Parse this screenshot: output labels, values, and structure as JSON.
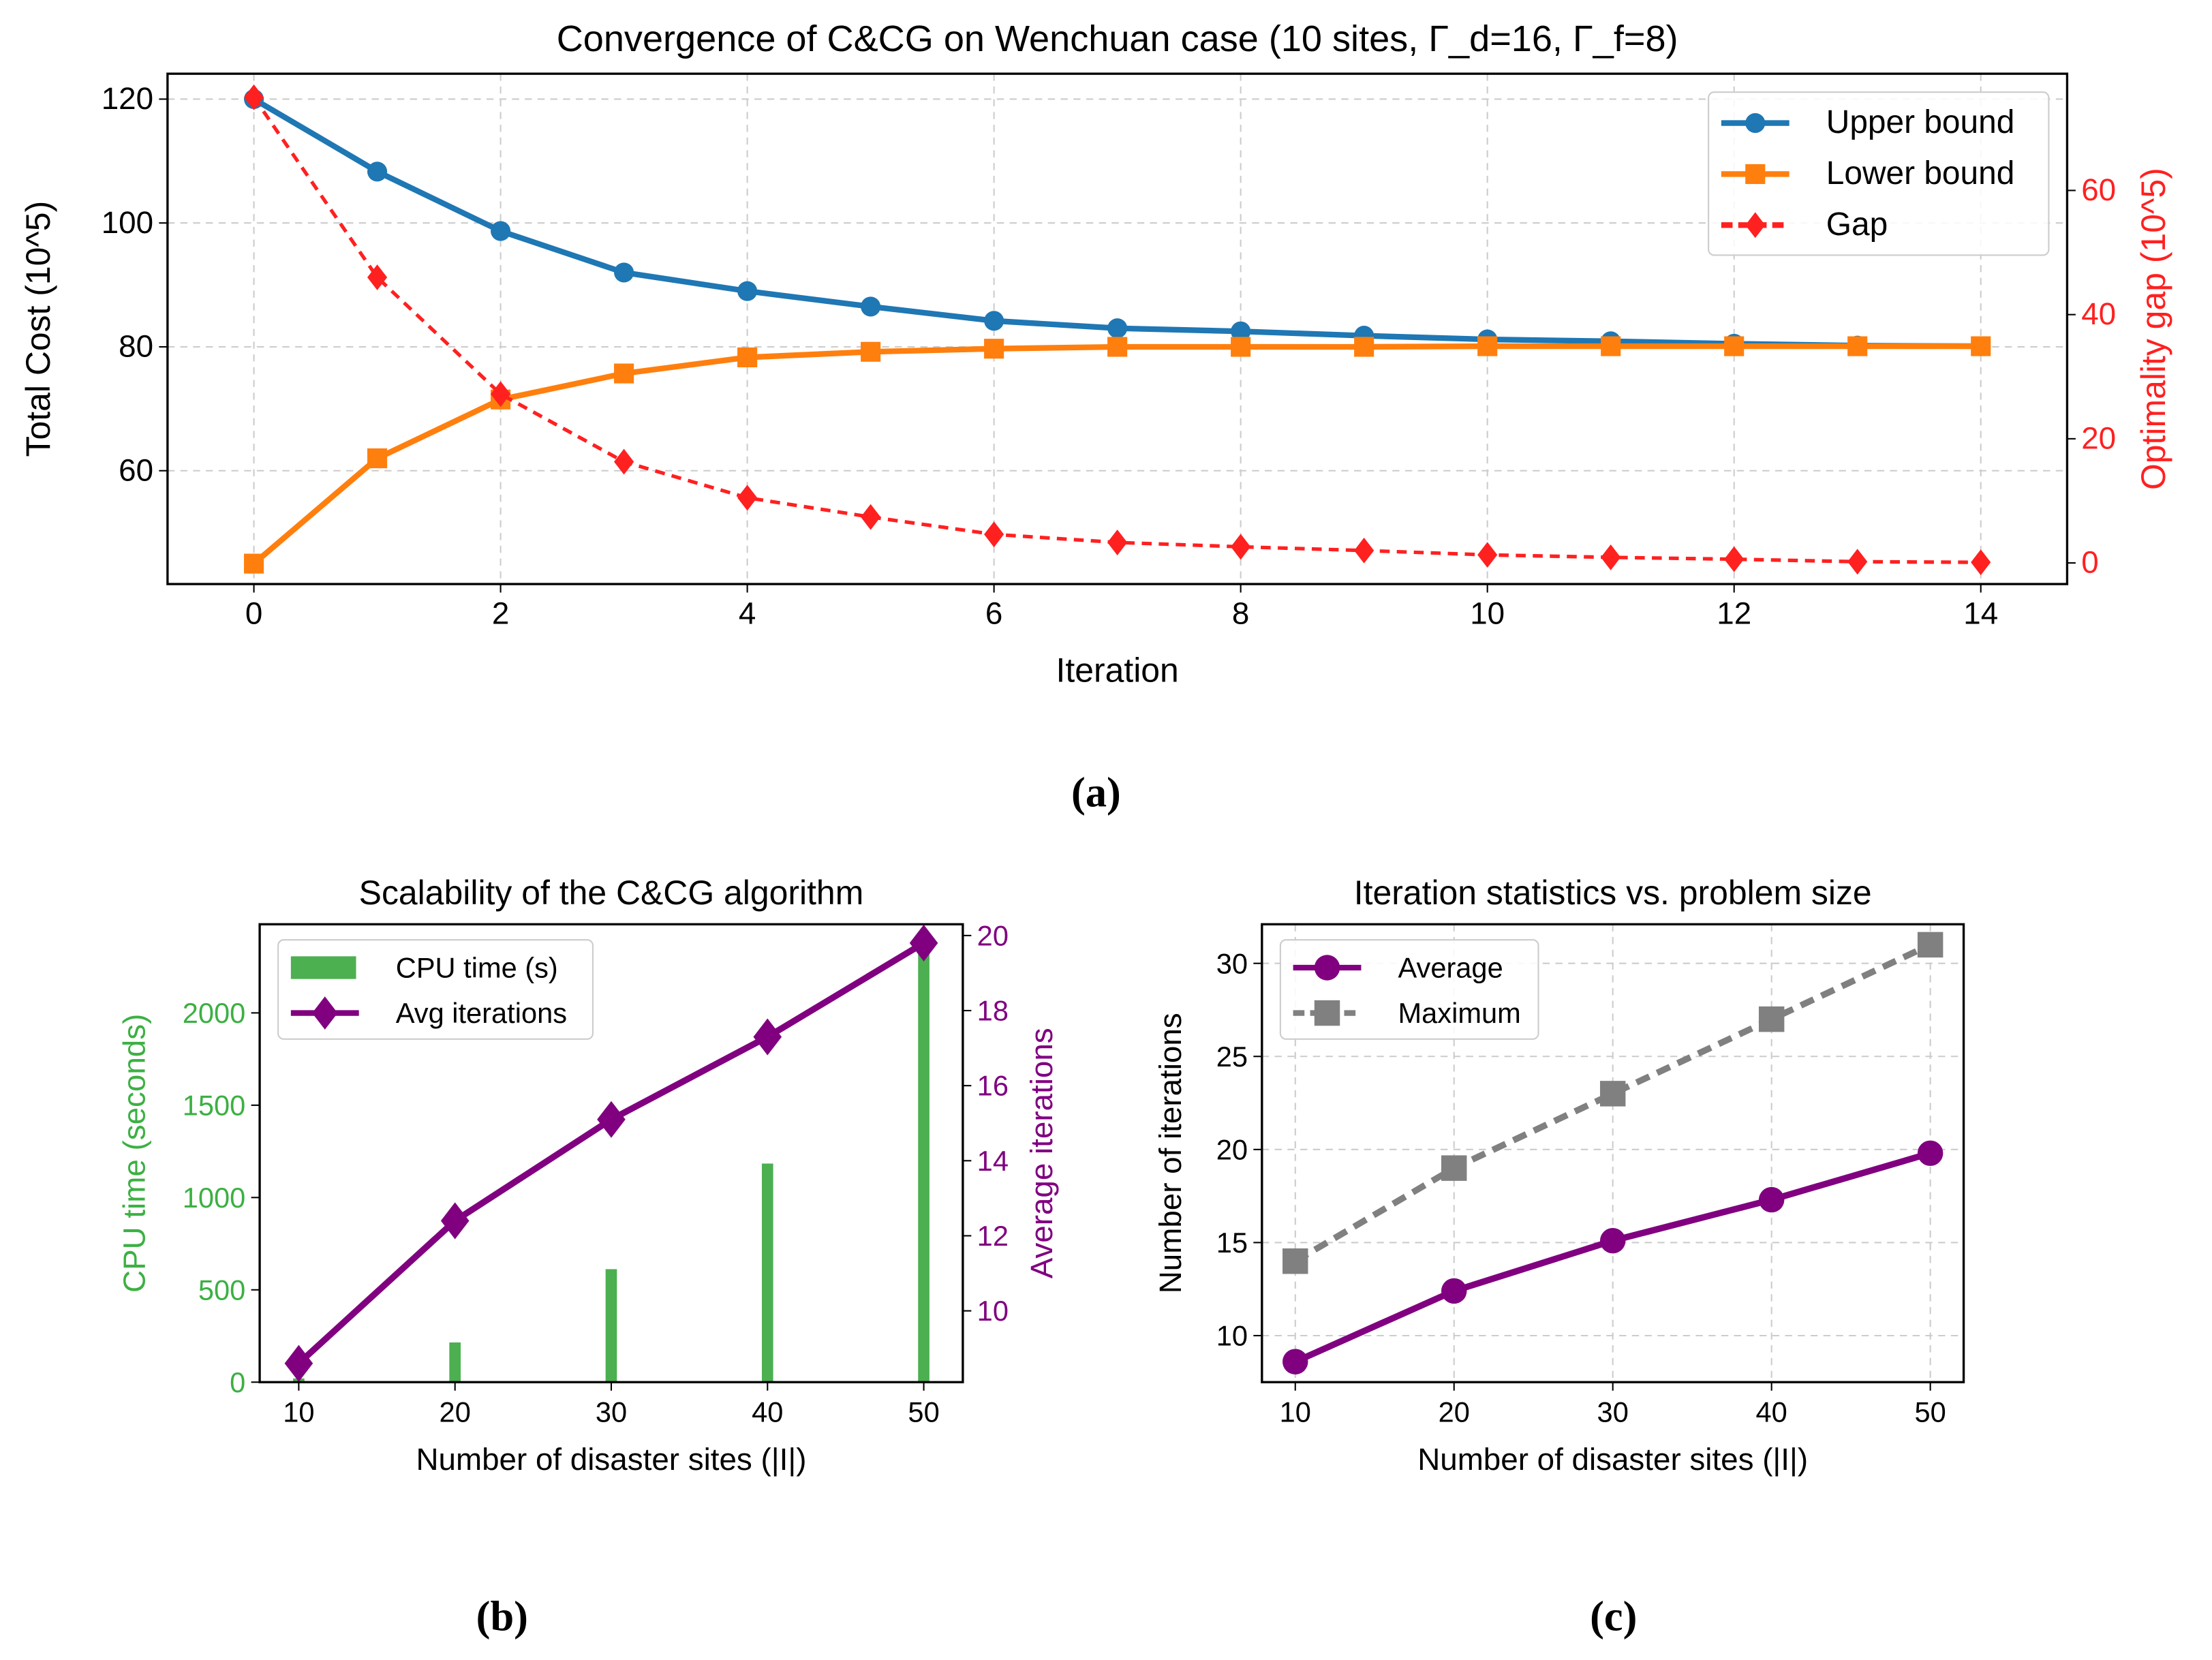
{
  "captions": [
    "(a)",
    "(b)",
    "(c)"
  ],
  "chart_data": [
    {
      "type": "line",
      "title": "Convergence of C&CG on Wenchuan case (10 sites, Γ_d=16, Γ_f=8)",
      "xlabel": "Iteration",
      "ylabel": "Total Cost (10^5)",
      "ylabel_right": "Optimality gap (10^5)",
      "x": [
        0,
        1,
        2,
        3,
        4,
        5,
        6,
        7,
        8,
        9,
        10,
        11,
        12,
        13,
        14
      ],
      "xlim": [
        -0.7,
        14.7
      ],
      "ylim": [
        41.7,
        124.1
      ],
      "ylim_right": [
        -3.4,
        78.8
      ],
      "xticks": [
        0,
        2,
        4,
        6,
        8,
        10,
        12,
        14
      ],
      "yticks": [
        60,
        80,
        100,
        120
      ],
      "yticks_right": [
        0,
        20,
        40,
        60
      ],
      "grid": true,
      "legend_position": "top-right",
      "series": [
        {
          "name": "Upper bound",
          "axis": "left",
          "color": "#1f77b4",
          "marker": "circle",
          "style": "solid",
          "values": [
            120,
            108.3,
            98.7,
            92,
            89,
            86.5,
            84.2,
            83,
            82.5,
            81.8,
            81.2,
            80.9,
            80.5,
            80.2,
            80.1
          ]
        },
        {
          "name": "Lower bound",
          "axis": "left",
          "color": "#ff7f0e",
          "marker": "square",
          "style": "solid",
          "values": [
            45,
            62,
            71.5,
            75.7,
            78.3,
            79.2,
            79.7,
            80,
            80,
            80,
            80.1,
            80.1,
            80.1,
            80.1,
            80.1
          ]
        },
        {
          "name": "Gap",
          "axis": "right",
          "color": "#ff2020",
          "marker": "diamond",
          "style": "dashed",
          "values": [
            75,
            46,
            27.2,
            16.3,
            10.5,
            7.4,
            4.6,
            3.3,
            2.6,
            2,
            1.3,
            0.9,
            0.6,
            0.2,
            0.1
          ]
        }
      ]
    },
    {
      "type": "bar",
      "title": "Scalability of the C&CG algorithm",
      "xlabel": "Number of disaster sites (|I|)",
      "ylabel": "CPU time (seconds)",
      "ylabel_right": "Average iterations",
      "categories": [
        10,
        20,
        30,
        40,
        50
      ],
      "xlim": [
        7.5,
        52.5
      ],
      "ylim": [
        0,
        2480
      ],
      "ylim_right": [
        8.1,
        20.3
      ],
      "xticks": [
        10,
        20,
        30,
        40,
        50
      ],
      "yticks": [
        0,
        500,
        1000,
        1500,
        2000
      ],
      "yticks_right": [
        10,
        12,
        14,
        16,
        18,
        20
      ],
      "grid": false,
      "legend_position": "top-left",
      "series": [
        {
          "name": "CPU time (s)",
          "axis": "left",
          "kind": "bar",
          "color": "#4caf50",
          "values": [
            20,
            215,
            612,
            1184,
            2350
          ]
        },
        {
          "name": "Avg iterations",
          "axis": "right",
          "kind": "line",
          "color": "#800080",
          "marker": "diamond",
          "style": "solid",
          "values": [
            8.6,
            12.4,
            15.1,
            17.3,
            19.8
          ]
        }
      ]
    },
    {
      "type": "line",
      "title": "Iteration statistics vs. problem size",
      "xlabel": "Number of disaster sites (|I|)",
      "ylabel": "Number of iterations",
      "x": [
        10,
        20,
        30,
        40,
        50
      ],
      "xlim": [
        7.9,
        52.1
      ],
      "ylim": [
        7.5,
        32.1
      ],
      "xticks": [
        10,
        20,
        30,
        40,
        50
      ],
      "yticks": [
        10,
        15,
        20,
        25,
        30
      ],
      "grid": true,
      "legend_position": "top-left",
      "series": [
        {
          "name": "Average",
          "color": "#800080",
          "marker": "circle",
          "style": "solid",
          "values": [
            8.6,
            12.4,
            15.1,
            17.3,
            19.8
          ]
        },
        {
          "name": "Maximum",
          "color": "#808080",
          "marker": "square",
          "style": "dashed",
          "values": [
            14,
            19,
            23,
            27,
            31
          ]
        }
      ]
    }
  ]
}
